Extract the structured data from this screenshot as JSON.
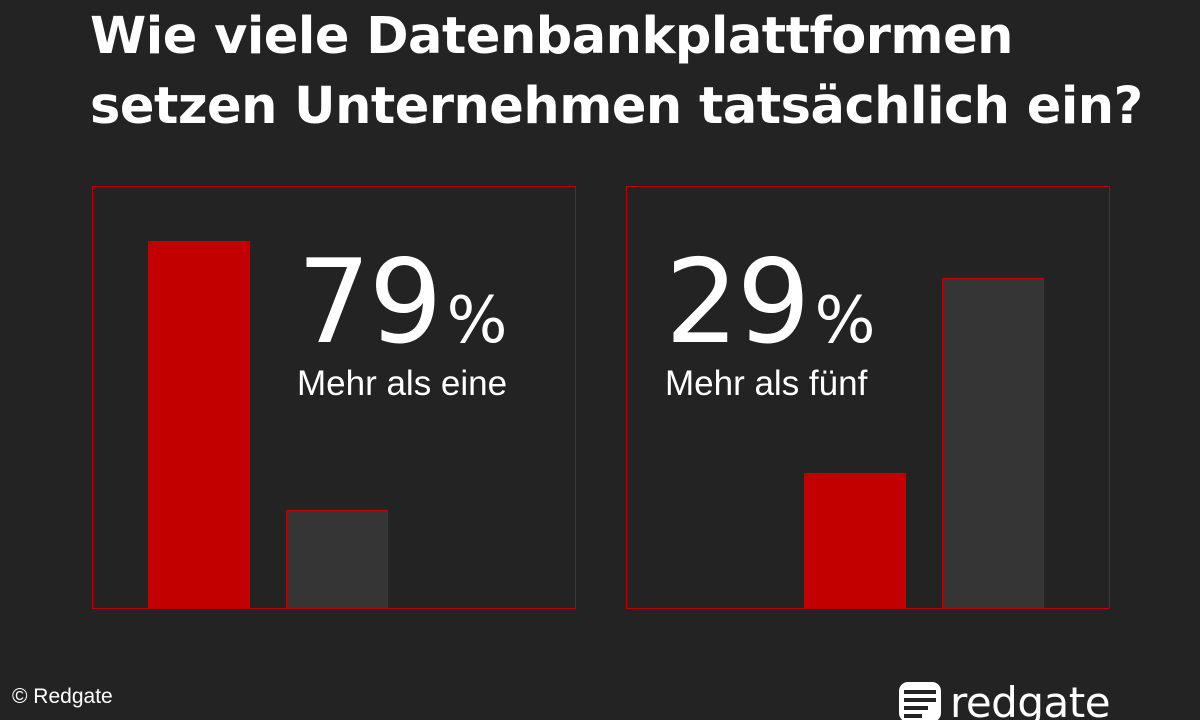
{
  "title": {
    "line1": "Wie viele Datenbankplattformen",
    "line2": "setzen Unternehmen tatsächlich ein?"
  },
  "colors": {
    "background": "#232323",
    "accent_red": "#c20000",
    "bar_gray": "#353535",
    "text": "#ffffff"
  },
  "chart_data": [
    {
      "type": "bar",
      "value_label": "79",
      "unit": "%",
      "label": "Mehr als eine",
      "values": [
        79,
        21
      ],
      "colors": [
        "#c20000",
        "#353535"
      ]
    },
    {
      "type": "bar",
      "value_label": "29",
      "unit": "%",
      "label": "Mehr als fünf",
      "values": [
        29,
        71
      ],
      "colors": [
        "#c20000",
        "#353535"
      ]
    }
  ],
  "footer": {
    "copyright": "© Redgate",
    "brand": "redgate",
    "brand_icon": "redgate-logo-icon"
  }
}
